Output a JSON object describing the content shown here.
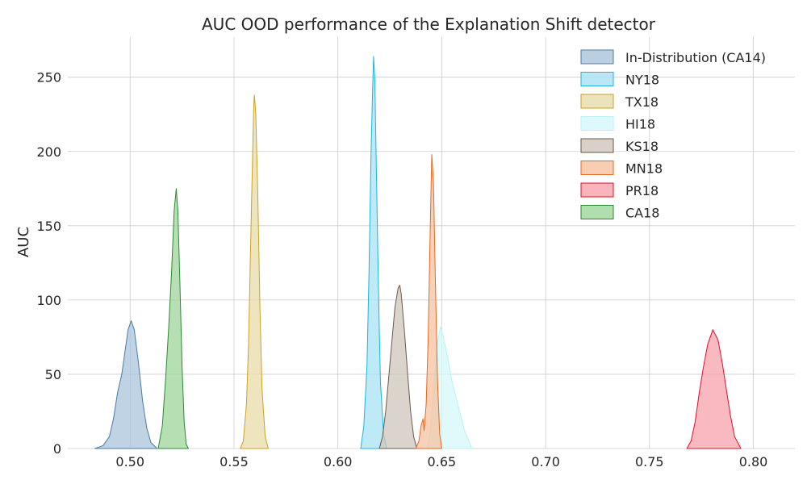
{
  "chart_data": {
    "type": "area",
    "title": "AUC OOD performance of the Explanation Shift detector",
    "xlabel": "",
    "ylabel": "AUC",
    "xlim": [
      0.47,
      0.82
    ],
    "ylim": [
      0,
      277
    ],
    "xticks": [
      0.5,
      0.55,
      0.6,
      0.65,
      0.7,
      0.75,
      0.8
    ],
    "xtick_labels": [
      "0.50",
      "0.55",
      "0.60",
      "0.65",
      "0.70",
      "0.75",
      "0.80"
    ],
    "yticks": [
      0,
      50,
      100,
      150,
      200,
      250
    ],
    "ytick_labels": [
      "0",
      "50",
      "100",
      "150",
      "200",
      "250"
    ],
    "grid": true,
    "legend_position": "top-right",
    "series": [
      {
        "name": "In-Distribution (CA14)",
        "color": "#4c7aa6",
        "fill": "#a9c4db",
        "points": [
          [
            0.483,
            0
          ],
          [
            0.487,
            2
          ],
          [
            0.49,
            8
          ],
          [
            0.492,
            20
          ],
          [
            0.494,
            38
          ],
          [
            0.496,
            50
          ],
          [
            0.4975,
            65
          ],
          [
            0.499,
            80
          ],
          [
            0.5005,
            86
          ],
          [
            0.502,
            80
          ],
          [
            0.504,
            58
          ],
          [
            0.506,
            32
          ],
          [
            0.508,
            14
          ],
          [
            0.51,
            4
          ],
          [
            0.513,
            0
          ]
        ]
      },
      {
        "name": "NY18",
        "color": "#1fb3e0",
        "fill": "#a8e1f3",
        "points": [
          [
            0.611,
            0
          ],
          [
            0.6125,
            15
          ],
          [
            0.614,
            55
          ],
          [
            0.615,
            120
          ],
          [
            0.616,
            200
          ],
          [
            0.6168,
            245
          ],
          [
            0.6172,
            264
          ],
          [
            0.6178,
            248
          ],
          [
            0.6185,
            190
          ],
          [
            0.6195,
            110
          ],
          [
            0.6205,
            45
          ],
          [
            0.622,
            10
          ],
          [
            0.6235,
            0
          ]
        ]
      },
      {
        "name": "TX18",
        "color": "#c9a227",
        "fill": "#e8dcaa",
        "points": [
          [
            0.553,
            0
          ],
          [
            0.5545,
            5
          ],
          [
            0.556,
            30
          ],
          [
            0.557,
            70
          ],
          [
            0.558,
            135
          ],
          [
            0.559,
            200
          ],
          [
            0.5595,
            230
          ],
          [
            0.5598,
            238
          ],
          [
            0.5605,
            225
          ],
          [
            0.5615,
            170
          ],
          [
            0.5625,
            95
          ],
          [
            0.5635,
            40
          ],
          [
            0.565,
            8
          ],
          [
            0.5665,
            0
          ]
        ]
      },
      {
        "name": "HI18",
        "color": "#b8f3f6",
        "fill": "#d6f8fa",
        "points": [
          [
            0.643,
            0
          ],
          [
            0.6445,
            12
          ],
          [
            0.6465,
            45
          ],
          [
            0.648,
            72
          ],
          [
            0.6495,
            82
          ],
          [
            0.651,
            74
          ],
          [
            0.653,
            60
          ],
          [
            0.655,
            45
          ],
          [
            0.658,
            28
          ],
          [
            0.661,
            12
          ],
          [
            0.6645,
            0
          ]
        ]
      },
      {
        "name": "KS18",
        "color": "#6b5a4a",
        "fill": "#cfc5bb",
        "points": [
          [
            0.62,
            0
          ],
          [
            0.6215,
            8
          ],
          [
            0.623,
            25
          ],
          [
            0.6245,
            48
          ],
          [
            0.626,
            72
          ],
          [
            0.6275,
            95
          ],
          [
            0.629,
            108
          ],
          [
            0.6298,
            110
          ],
          [
            0.6305,
            104
          ],
          [
            0.632,
            80
          ],
          [
            0.6335,
            52
          ],
          [
            0.635,
            25
          ],
          [
            0.6365,
            8
          ],
          [
            0.638,
            0
          ]
        ]
      },
      {
        "name": "MN18",
        "color": "#e26b22",
        "fill": "#f6c2a0",
        "points": [
          [
            0.6375,
            0
          ],
          [
            0.639,
            5
          ],
          [
            0.64,
            15
          ],
          [
            0.641,
            20
          ],
          [
            0.6415,
            12
          ],
          [
            0.6425,
            30
          ],
          [
            0.6435,
            75
          ],
          [
            0.6445,
            150
          ],
          [
            0.6452,
            198
          ],
          [
            0.646,
            180
          ],
          [
            0.647,
            110
          ],
          [
            0.648,
            45
          ],
          [
            0.649,
            10
          ],
          [
            0.65,
            0
          ]
        ]
      },
      {
        "name": "PR18",
        "color": "#e0102d",
        "fill": "#f7a1ab",
        "points": [
          [
            0.768,
            0
          ],
          [
            0.77,
            5
          ],
          [
            0.772,
            18
          ],
          [
            0.774,
            38
          ],
          [
            0.776,
            55
          ],
          [
            0.778,
            70
          ],
          [
            0.7805,
            80
          ],
          [
            0.783,
            73
          ],
          [
            0.785,
            58
          ],
          [
            0.787,
            40
          ],
          [
            0.789,
            22
          ],
          [
            0.791,
            8
          ],
          [
            0.794,
            0
          ]
        ]
      },
      {
        "name": "CA18",
        "color": "#2b8a34",
        "fill": "#9ed69a",
        "points": [
          [
            0.5135,
            0
          ],
          [
            0.5155,
            15
          ],
          [
            0.517,
            45
          ],
          [
            0.5185,
            80
          ],
          [
            0.52,
            120
          ],
          [
            0.5212,
            160
          ],
          [
            0.5222,
            175
          ],
          [
            0.523,
            160
          ],
          [
            0.524,
            110
          ],
          [
            0.525,
            55
          ],
          [
            0.526,
            18
          ],
          [
            0.527,
            3
          ],
          [
            0.528,
            0
          ]
        ]
      }
    ]
  }
}
